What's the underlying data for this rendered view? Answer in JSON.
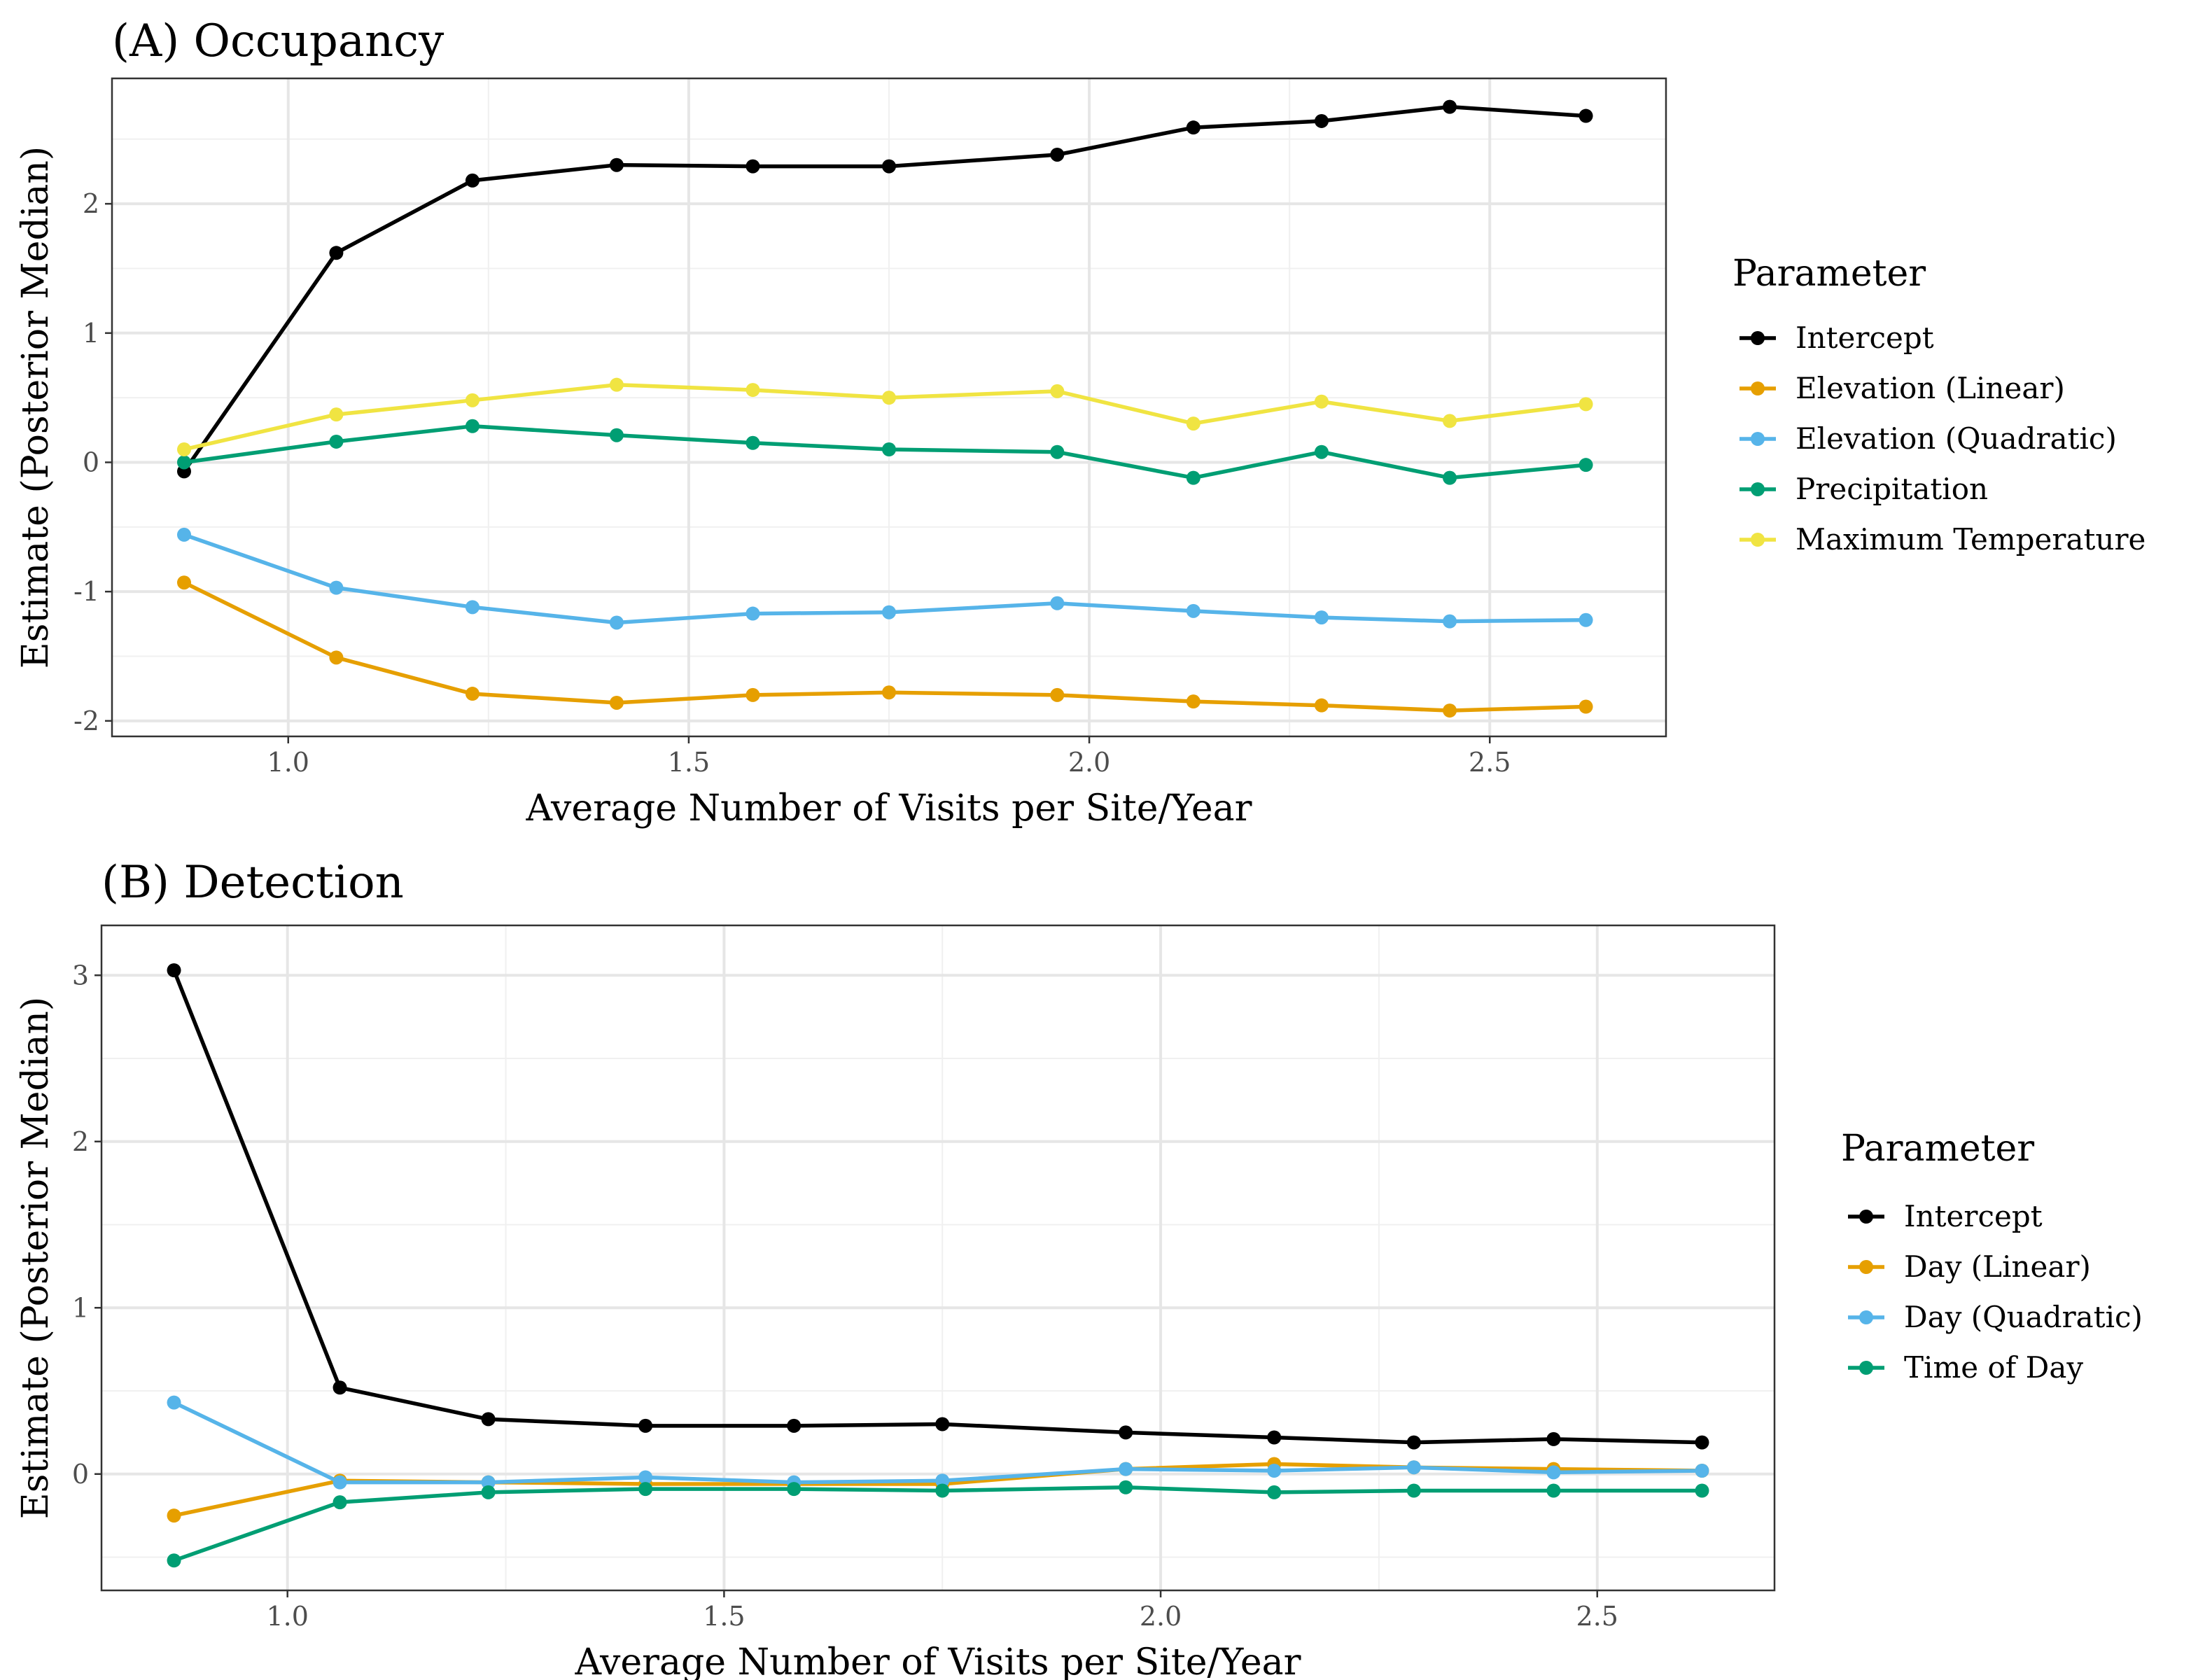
{
  "chart_data": [
    {
      "type": "line",
      "title": "(A) Occupancy",
      "xlabel": "Average Number of Visits per Site/Year",
      "ylabel": "Estimate (Posterior Median)",
      "xlim": [
        0.78,
        2.72
      ],
      "ylim": [
        -2.12,
        2.97
      ],
      "xticks": [
        1.0,
        1.5,
        2.0,
        2.5
      ],
      "xtick_labels": [
        "1.0",
        "1.5",
        "2.0",
        "2.5"
      ],
      "yticks": [
        -2,
        -1,
        0,
        1,
        2
      ],
      "ytick_labels": [
        "-2",
        "-1",
        "0",
        "1",
        "2"
      ],
      "grid": true,
      "legend_position": "right",
      "legend_title": "Parameter",
      "x": [
        0.87,
        1.06,
        1.23,
        1.41,
        1.58,
        1.75,
        1.96,
        2.13,
        2.29,
        2.45,
        2.62
      ],
      "series": [
        {
          "name": "Intercept",
          "color": "#000000",
          "values": [
            -0.07,
            1.62,
            2.18,
            2.3,
            2.29,
            2.29,
            2.38,
            2.59,
            2.64,
            2.75,
            2.68
          ]
        },
        {
          "name": "Elevation (Linear)",
          "color": "#E69F00",
          "values": [
            -0.93,
            -1.51,
            -1.79,
            -1.86,
            -1.8,
            -1.78,
            -1.8,
            -1.85,
            -1.88,
            -1.92,
            -1.89
          ]
        },
        {
          "name": "Elevation (Quadratic)",
          "color": "#56B4E9",
          "values": [
            -0.56,
            -0.97,
            -1.12,
            -1.24,
            -1.17,
            -1.16,
            -1.09,
            -1.15,
            -1.2,
            -1.23,
            -1.22
          ]
        },
        {
          "name": "Precipitation",
          "color": "#009E73",
          "values": [
            0.0,
            0.16,
            0.28,
            0.21,
            0.15,
            0.1,
            0.08,
            -0.12,
            0.08,
            -0.12,
            -0.02
          ]
        },
        {
          "name": "Maximum Temperature",
          "color": "#F0E442",
          "values": [
            0.1,
            0.37,
            0.48,
            0.6,
            0.56,
            0.5,
            0.55,
            0.3,
            0.47,
            0.32,
            0.45
          ]
        }
      ]
    },
    {
      "type": "line",
      "title": "(B) Detection",
      "xlabel": "Average Number of Visits per Site/Year",
      "ylabel": "Estimate (Posterior Median)",
      "xlim": [
        0.787,
        2.703
      ],
      "ylim": [
        -0.7,
        3.3
      ],
      "xticks": [
        1.0,
        1.5,
        2.0,
        2.5
      ],
      "xtick_labels": [
        "1.0",
        "1.5",
        "2.0",
        "2.5"
      ],
      "yticks": [
        0,
        1,
        2,
        3
      ],
      "ytick_labels": [
        "0",
        "1",
        "2",
        "3"
      ],
      "grid": true,
      "legend_position": "right",
      "legend_title": "Parameter",
      "x": [
        0.87,
        1.06,
        1.23,
        1.41,
        1.58,
        1.75,
        1.96,
        2.13,
        2.29,
        2.45,
        2.62
      ],
      "series": [
        {
          "name": "Intercept",
          "color": "#000000",
          "values": [
            3.03,
            0.52,
            0.33,
            0.29,
            0.29,
            0.3,
            0.25,
            0.22,
            0.19,
            0.21,
            0.19
          ]
        },
        {
          "name": "Day (Linear)",
          "color": "#E69F00",
          "values": [
            -0.25,
            -0.04,
            -0.05,
            -0.06,
            -0.06,
            -0.06,
            0.03,
            0.06,
            0.04,
            0.03,
            0.02
          ]
        },
        {
          "name": "Day (Quadratic)",
          "color": "#56B4E9",
          "values": [
            0.43,
            -0.05,
            -0.05,
            -0.02,
            -0.05,
            -0.04,
            0.03,
            0.02,
            0.04,
            0.01,
            0.02
          ]
        },
        {
          "name": "Time of Day",
          "color": "#009E73",
          "values": [
            -0.52,
            -0.17,
            -0.11,
            -0.09,
            -0.09,
            -0.1,
            -0.08,
            -0.11,
            -0.1,
            -0.1,
            -0.1
          ]
        }
      ]
    }
  ]
}
